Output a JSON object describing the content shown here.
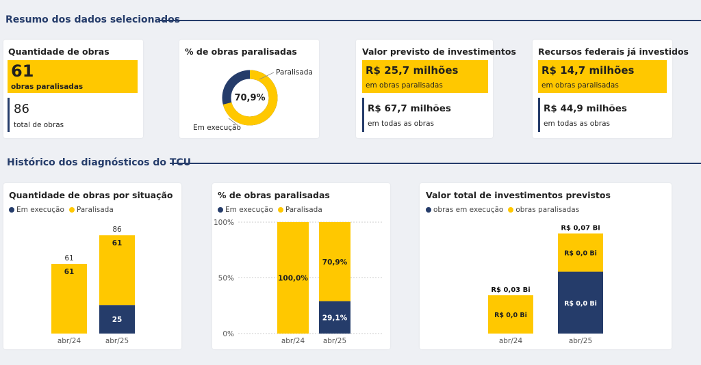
{
  "section1": {
    "title": "Resumo dos dados selecionados"
  },
  "section2": {
    "title": "Histórico dos diagnósticos do TCU"
  },
  "colors": {
    "yellow": "#ffc800",
    "navy": "#253c6a"
  },
  "kpi_obras": {
    "title": "Quantidade de obras",
    "highlight_value": "61",
    "highlight_label": "obras paralisadas",
    "total_value": "86",
    "total_label": "total de obras"
  },
  "kpi_pct": {
    "title": "% de obras paralisadas",
    "center_value": "70,9%",
    "label_paralisada": "Paralisada",
    "label_execucao": "Em execução",
    "paralisada_fraction": 0.709
  },
  "kpi_valor": {
    "title": "Valor previsto de investimentos",
    "highlight_value": "R$ 25,7 milhões",
    "highlight_label": "em obras paralisadas",
    "total_value": "R$ 67,7 milhões",
    "total_label": "em todas as obras"
  },
  "kpi_recursos": {
    "title": "Recursos federais já investidos",
    "highlight_value": "R$ 14,7 milhões",
    "highlight_label": "em obras paralisadas",
    "total_value": "R$ 44,9 milhões",
    "total_label": "em todas as obras"
  },
  "chart_data": [
    {
      "type": "bar",
      "stacked": true,
      "title": "Quantidade de obras por situação",
      "categories": [
        "abr/24",
        "abr/25"
      ],
      "series": [
        {
          "name": "Em execução",
          "values": [
            0,
            25
          ],
          "labels": [
            "",
            "25"
          ]
        },
        {
          "name": "Paralisada",
          "values": [
            61,
            61
          ],
          "labels": [
            "61",
            "61"
          ]
        }
      ],
      "totals": [
        "61",
        "86"
      ],
      "legend": "top-left"
    },
    {
      "type": "bar",
      "stacked": true,
      "title": "% de obras paralisadas",
      "categories": [
        "abr/24",
        "abr/25"
      ],
      "series": [
        {
          "name": "Em execução",
          "values": [
            0,
            29.1
          ],
          "labels": [
            "",
            "29,1%"
          ]
        },
        {
          "name": "Paralisada",
          "values": [
            100,
            70.9
          ],
          "labels": [
            "100,0%",
            "70,9%"
          ]
        }
      ],
      "ylim": [
        0,
        100
      ],
      "yticks": [
        "0%",
        "50%",
        "100%"
      ],
      "grid": true,
      "legend": "top-left"
    },
    {
      "type": "bar",
      "stacked": true,
      "title": "Valor total de investimentos previstos",
      "categories": [
        "abr/24",
        "abr/25"
      ],
      "series": [
        {
          "name": "obras em execução",
          "values": [
            0,
            0.042
          ],
          "labels": [
            "",
            "R$ 0,0 Bi"
          ]
        },
        {
          "name": "obras paralisadas",
          "values": [
            0.026,
            0.026
          ],
          "labels": [
            "R$ 0,0 Bi",
            "R$ 0,0 Bi"
          ]
        }
      ],
      "totals": [
        "R$ 0,03 Bi",
        "R$ 0,07 Bi"
      ],
      "legend": "top-left"
    }
  ]
}
